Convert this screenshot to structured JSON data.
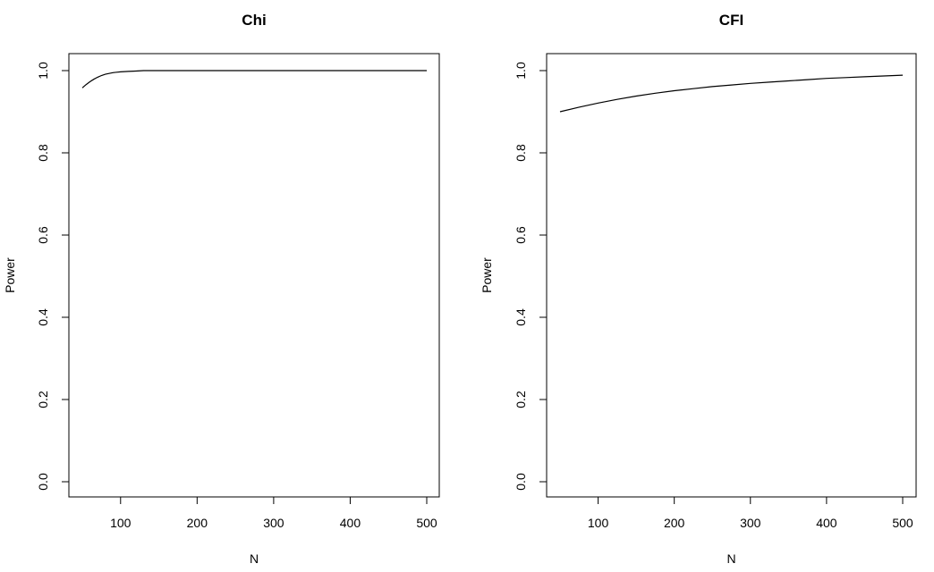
{
  "chart_data": [
    {
      "type": "line",
      "title": "Chi",
      "xlabel": "N",
      "ylabel": "Power",
      "xlim": [
        50,
        500
      ],
      "ylim": [
        0.0,
        1.0
      ],
      "xticks": [
        100,
        200,
        300,
        400,
        500
      ],
      "yticks": [
        0.0,
        0.2,
        0.4,
        0.6,
        0.8,
        1.0
      ],
      "ytick_labels": [
        "0.0",
        "0.2",
        "0.4",
        "0.6",
        "0.8",
        "1.0"
      ],
      "grid": false,
      "series": [
        {
          "x": [
            50,
            55,
            60,
            65,
            70,
            75,
            80,
            85,
            90,
            95,
            100,
            110,
            120,
            130,
            150,
            200,
            300,
            400,
            500
          ],
          "y": [
            0.958,
            0.966,
            0.973,
            0.979,
            0.984,
            0.988,
            0.991,
            0.993,
            0.995,
            0.996,
            0.997,
            0.998,
            0.999,
            1.0,
            1.0,
            1.0,
            1.0,
            1.0,
            1.0
          ],
          "color": "#000000"
        }
      ]
    },
    {
      "type": "line",
      "title": "CFI",
      "xlabel": "N",
      "ylabel": "Power",
      "xlim": [
        50,
        500
      ],
      "ylim": [
        0.0,
        1.0
      ],
      "xticks": [
        100,
        200,
        300,
        400,
        500
      ],
      "yticks": [
        0.0,
        0.2,
        0.4,
        0.6,
        0.8,
        1.0
      ],
      "ytick_labels": [
        "0.0",
        "0.2",
        "0.4",
        "0.6",
        "0.8",
        "1.0"
      ],
      "grid": false,
      "series": [
        {
          "x": [
            50,
            75,
            100,
            125,
            150,
            175,
            200,
            225,
            250,
            275,
            300,
            325,
            350,
            375,
            400,
            425,
            450,
            475,
            500
          ],
          "y": [
            0.9,
            0.911,
            0.921,
            0.93,
            0.938,
            0.945,
            0.951,
            0.956,
            0.961,
            0.965,
            0.969,
            0.972,
            0.975,
            0.978,
            0.981,
            0.983,
            0.985,
            0.987,
            0.989
          ],
          "color": "#000000"
        }
      ]
    }
  ]
}
